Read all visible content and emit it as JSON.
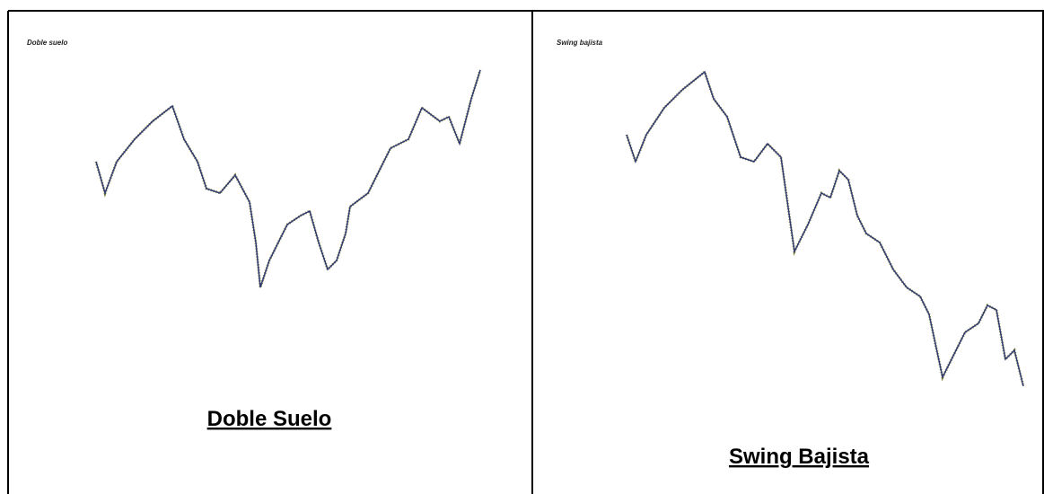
{
  "panels": [
    {
      "chart_label": "Doble suelo",
      "caption": "Doble Suelo"
    },
    {
      "chart_label": "Swing bajista",
      "caption": "Swing Bajista"
    }
  ]
}
